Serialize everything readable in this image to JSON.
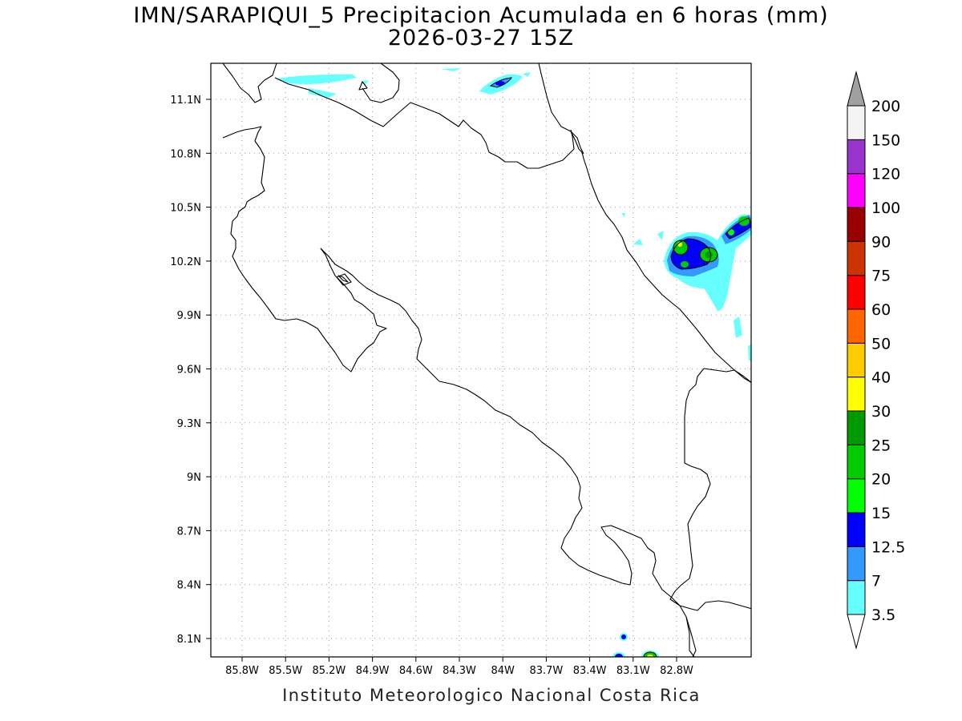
{
  "title": {
    "line1": "IMN/SARAPIQUI_5 Precipitacion Acumulada en 6 horas (mm)",
    "line2": "2026-03-27 15Z"
  },
  "credit": "Instituto Meteorologico Nacional Costa Rica",
  "map": {
    "lat_labels": [
      "11.1N",
      "10.8N",
      "10.5N",
      "10.2N",
      "9.9N",
      "9.6N",
      "9.3N",
      "9N",
      "8.7N",
      "8.4N",
      "8.1N"
    ],
    "lon_labels": [
      "85.8W",
      "85.5W",
      "85.2W",
      "84.9W",
      "84.6W",
      "84.3W",
      "84W",
      "83.7W",
      "83.4W",
      "83.1W",
      "82.8W"
    ],
    "grid": "dotted"
  },
  "colorbar": {
    "labels": [
      "3.5",
      "7",
      "12.5",
      "15",
      "20",
      "25",
      "30",
      "40",
      "50",
      "60",
      "75",
      "90",
      "100",
      "120",
      "150",
      "200"
    ],
    "colors": [
      "#66ffff",
      "#3399ff",
      "#0000ff",
      "#00ff00",
      "#00cc00",
      "#009900",
      "#ffff00",
      "#ffcc00",
      "#ff6600",
      "#ff0000",
      "#cc3300",
      "#990000",
      "#ff00ff",
      "#9933cc",
      "#f4f4f4"
    ],
    "over_color": "#a0a0a0",
    "under_color": "#ffffff"
  }
}
